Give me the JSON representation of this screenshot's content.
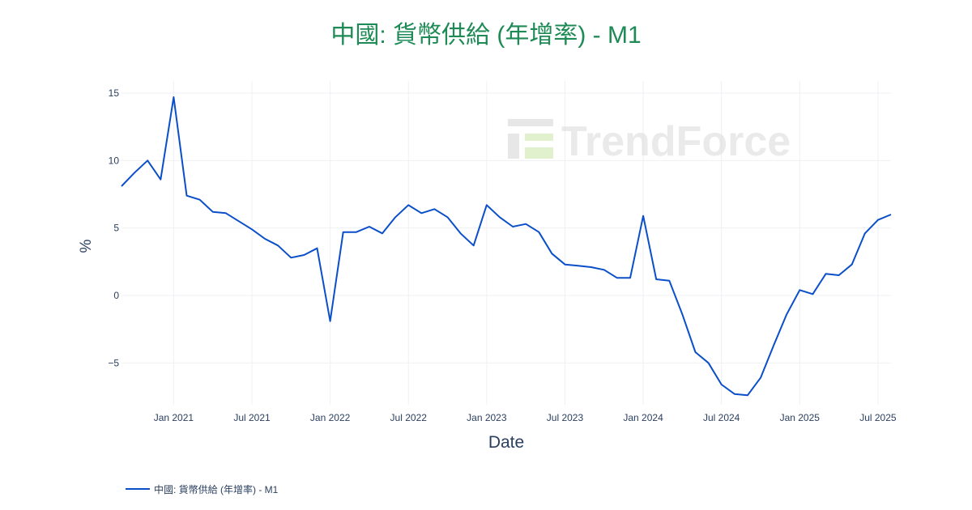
{
  "title": "中國: 貨幣供給 (年增率) - M1",
  "watermark": "TrendForce",
  "colors": {
    "title": "#1e8a55",
    "line": "#0a4fc9",
    "grid": "#eef0f3",
    "tick_text": "#2a3f5f",
    "watermark": "#e9e9e9"
  },
  "chart_data": {
    "type": "line",
    "title": "中國: 貨幣供給 (年增率) - M1",
    "xlabel": "Date",
    "ylabel": "%",
    "ylim": [
      -8.1,
      15.9
    ],
    "y_ticks": [
      15,
      10,
      5,
      0,
      -5
    ],
    "y_tick_labels": [
      "15",
      "10",
      "5",
      "0",
      "−5"
    ],
    "x_ticks": [
      "2021-01",
      "2021-07",
      "2022-01",
      "2022-07",
      "2023-01",
      "2023-07",
      "2024-01",
      "2024-07",
      "2025-01",
      "2025-07"
    ],
    "x_tick_labels": [
      "Jan 2021",
      "Jul 2021",
      "Jan 2022",
      "Jul 2022",
      "Jan 2023",
      "Jul 2023",
      "Jan 2024",
      "Jul 2024",
      "Jan 2025",
      "Jul 2025"
    ],
    "grid": true,
    "legend_position": "bottom-left",
    "series": [
      {
        "name": "中國: 貨幣供給 (年增率) - M1",
        "x": [
          "2020-09",
          "2020-10",
          "2020-11",
          "2020-12",
          "2021-01",
          "2021-02",
          "2021-03",
          "2021-04",
          "2021-05",
          "2021-06",
          "2021-07",
          "2021-08",
          "2021-09",
          "2021-10",
          "2021-11",
          "2021-12",
          "2022-01",
          "2022-02",
          "2022-03",
          "2022-04",
          "2022-05",
          "2022-06",
          "2022-07",
          "2022-08",
          "2022-09",
          "2022-10",
          "2022-11",
          "2022-12",
          "2023-01",
          "2023-02",
          "2023-03",
          "2023-04",
          "2023-05",
          "2023-06",
          "2023-07",
          "2023-08",
          "2023-09",
          "2023-10",
          "2023-11",
          "2023-12",
          "2024-01",
          "2024-02",
          "2024-03",
          "2024-04",
          "2024-05",
          "2024-06",
          "2024-07",
          "2024-08",
          "2024-09",
          "2024-10",
          "2024-11",
          "2024-12",
          "2025-01",
          "2025-02",
          "2025-03",
          "2025-04",
          "2025-05",
          "2025-06",
          "2025-07",
          "2025-08"
        ],
        "values": [
          8.1,
          9.1,
          10.0,
          8.6,
          14.7,
          7.4,
          7.1,
          6.2,
          6.1,
          5.5,
          4.9,
          4.2,
          3.7,
          2.8,
          3.0,
          3.5,
          -1.9,
          4.7,
          4.7,
          5.1,
          4.6,
          5.8,
          6.7,
          6.1,
          6.4,
          5.8,
          4.6,
          3.7,
          6.7,
          5.8,
          5.1,
          5.3,
          4.7,
          3.1,
          2.3,
          2.2,
          2.1,
          1.9,
          1.3,
          1.3,
          5.9,
          1.2,
          1.1,
          -1.4,
          -4.2,
          -5.0,
          -6.6,
          -7.3,
          -7.4,
          -6.1,
          -3.7,
          -1.4,
          0.4,
          0.1,
          1.6,
          1.5,
          2.3,
          4.6,
          5.6,
          6.0
        ]
      }
    ]
  }
}
